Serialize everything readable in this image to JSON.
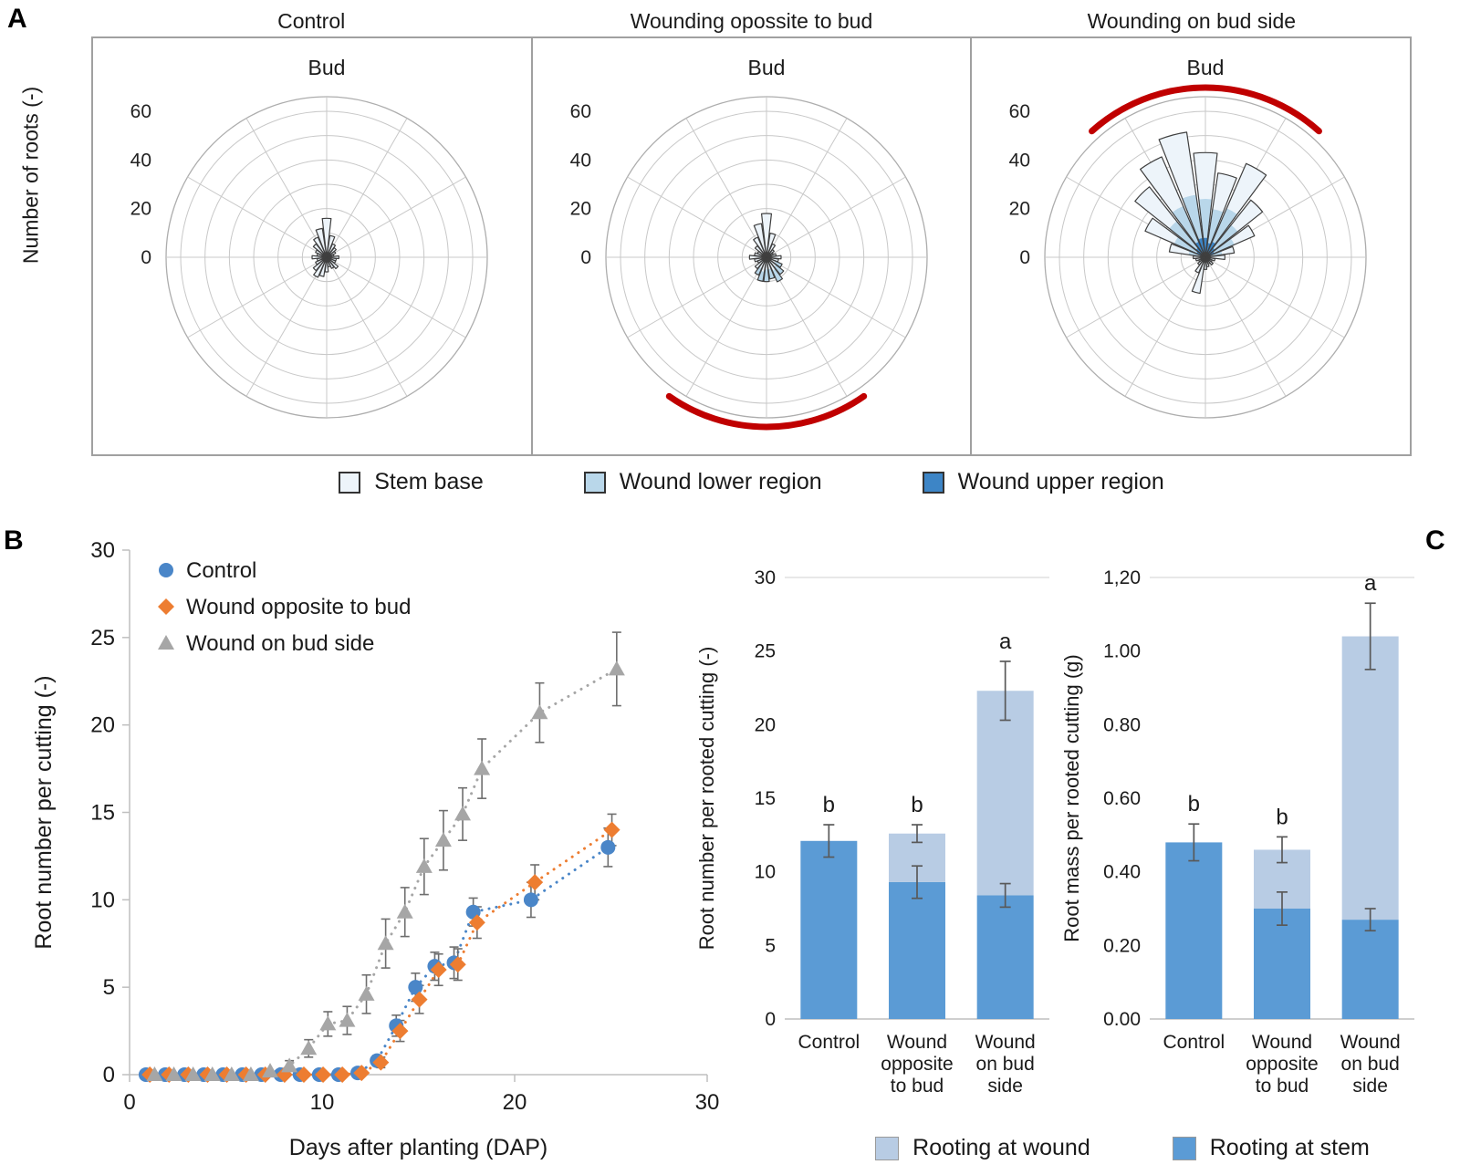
{
  "panels": {
    "a_label": "A",
    "b_label": "B",
    "c_label": "C"
  },
  "colors": {
    "stem_base": "#edf4fa",
    "wound_lower": "#b9d7ea",
    "wound_upper": "#3d85c6",
    "bar_stem": "#5b9bd5",
    "bar_wound": "#b8cce4",
    "series_control": "#4a86c8",
    "series_opposite": "#ed7d31",
    "series_budside": "#a6a6a6",
    "wound_arc": "#c00000",
    "error_bar": "#595959",
    "grid": "#c8c8c8",
    "petal_outline": "#3f3f3f"
  },
  "legend_a": {
    "items": [
      {
        "label": "Stem base",
        "color_key": "stem_base"
      },
      {
        "label": "Wound lower region",
        "color_key": "wound_lower"
      },
      {
        "label": "Wound upper region",
        "color_key": "wound_upper"
      }
    ]
  },
  "legend_c": {
    "items": [
      {
        "label": "Rooting at wound",
        "color_key": "bar_wound"
      },
      {
        "label": "Rooting at stem",
        "color_key": "bar_stem"
      }
    ]
  },
  "chart_data": [
    {
      "type": "rose",
      "title": "Control",
      "center_label": "Bud",
      "ylabel": "Number of roots (-)",
      "r_ticks": [
        60,
        40,
        20,
        0
      ],
      "r_rings": [
        10,
        20,
        30,
        40,
        50,
        60
      ],
      "r_max": 66,
      "sector_half_width_deg": 6.5,
      "wound_arc": null,
      "sectors": [
        [
          0,
          [
            [
              "stem_base",
              16
            ]
          ]
        ],
        [
          15,
          [
            [
              "stem_base",
              9
            ]
          ]
        ],
        [
          30,
          [
            [
              "stem_base",
              6
            ]
          ]
        ],
        [
          45,
          [
            [
              "stem_base",
              5
            ]
          ]
        ],
        [
          60,
          [
            [
              "stem_base",
              4
            ]
          ]
        ],
        [
          75,
          [
            [
              "stem_base",
              3
            ]
          ]
        ],
        [
          90,
          [
            [
              "stem_base",
              5
            ]
          ]
        ],
        [
          105,
          [
            [
              "stem_base",
              4
            ]
          ]
        ],
        [
          120,
          [
            [
              "stem_base",
              4
            ]
          ]
        ],
        [
          135,
          [
            [
              "stem_base",
              6
            ]
          ]
        ],
        [
          150,
          [
            [
              "stem_base",
              5
            ]
          ]
        ],
        [
          165,
          [
            [
              "stem_base",
              4
            ]
          ]
        ],
        [
          180,
          [
            [
              "stem_base",
              6
            ]
          ]
        ],
        [
          195,
          [
            [
              "stem_base",
              8
            ]
          ]
        ],
        [
          210,
          [
            [
              "stem_base",
              9
            ]
          ]
        ],
        [
          225,
          [
            [
              "stem_base",
              7
            ]
          ]
        ],
        [
          240,
          [
            [
              "stem_base",
              5
            ]
          ]
        ],
        [
          255,
          [
            [
              "stem_base",
              4
            ]
          ]
        ],
        [
          270,
          [
            [
              "stem_base",
              6
            ]
          ]
        ],
        [
          285,
          [
            [
              "stem_base",
              4
            ]
          ]
        ],
        [
          300,
          [
            [
              "stem_base",
              5
            ]
          ]
        ],
        [
          315,
          [
            [
              "stem_base",
              7
            ]
          ]
        ],
        [
          330,
          [
            [
              "stem_base",
              9
            ]
          ]
        ],
        [
          345,
          [
            [
              "stem_base",
              12
            ]
          ]
        ]
      ]
    },
    {
      "type": "rose",
      "title": "Wounding opossite to bud",
      "center_label": "Bud",
      "ylabel": "Number of roots (-)",
      "r_ticks": [
        60,
        40,
        20,
        0
      ],
      "r_rings": [
        10,
        20,
        30,
        40,
        50,
        60
      ],
      "r_max": 66,
      "sector_half_width_deg": 6.5,
      "wound_arc": {
        "start": 145,
        "end": 215
      },
      "sectors": [
        [
          0,
          [
            [
              "stem_base",
              18
            ]
          ]
        ],
        [
          15,
          [
            [
              "stem_base",
              10
            ]
          ]
        ],
        [
          30,
          [
            [
              "stem_base",
              6
            ]
          ]
        ],
        [
          45,
          [
            [
              "stem_base",
              4
            ]
          ]
        ],
        [
          60,
          [
            [
              "stem_base",
              3
            ]
          ]
        ],
        [
          75,
          [
            [
              "stem_base",
              4
            ]
          ]
        ],
        [
          90,
          [
            [
              "stem_base",
              6
            ]
          ]
        ],
        [
          105,
          [
            [
              "stem_base",
              5
            ]
          ]
        ],
        [
          120,
          [
            [
              "stem_base",
              4
            ],
            [
              "wound_lower",
              3
            ]
          ]
        ],
        [
          135,
          [
            [
              "stem_base",
              5
            ],
            [
              "wound_lower",
              4
            ]
          ]
        ],
        [
          150,
          [
            [
              "stem_base",
              6
            ],
            [
              "wound_lower",
              5
            ]
          ]
        ],
        [
          165,
          [
            [
              "stem_base",
              5
            ],
            [
              "wound_lower",
              4
            ]
          ]
        ],
        [
          180,
          [
            [
              "stem_base",
              5
            ],
            [
              "wound_lower",
              5
            ]
          ]
        ],
        [
          195,
          [
            [
              "stem_base",
              6
            ],
            [
              "wound_lower",
              4
            ]
          ]
        ],
        [
          210,
          [
            [
              "stem_base",
              5
            ],
            [
              "wound_lower",
              3
            ]
          ]
        ],
        [
          225,
          [
            [
              "stem_base",
              6
            ]
          ]
        ],
        [
          240,
          [
            [
              "stem_base",
              4
            ]
          ]
        ],
        [
          255,
          [
            [
              "stem_base",
              5
            ]
          ]
        ],
        [
          270,
          [
            [
              "stem_base",
              7
            ]
          ]
        ],
        [
          285,
          [
            [
              "stem_base",
              5
            ]
          ]
        ],
        [
          300,
          [
            [
              "stem_base",
              4
            ]
          ]
        ],
        [
          315,
          [
            [
              "stem_base",
              6
            ]
          ]
        ],
        [
          330,
          [
            [
              "stem_base",
              9
            ]
          ]
        ],
        [
          345,
          [
            [
              "stem_base",
              14
            ]
          ]
        ]
      ]
    },
    {
      "type": "rose",
      "title": "Wounding on bud side",
      "center_label": "Bud",
      "ylabel": "Number of roots (-)",
      "r_ticks": [
        60,
        40,
        20,
        0
      ],
      "r_rings": [
        10,
        20,
        30,
        40,
        50,
        60
      ],
      "r_max": 66,
      "sector_half_width_deg": 6.5,
      "wound_arc": {
        "start": -42,
        "end": 42
      },
      "sectors": [
        [
          270,
          [
            [
              "stem_base",
              5
            ]
          ]
        ],
        [
          285,
          [
            [
              "wound_upper",
              2
            ],
            [
              "wound_lower",
              5
            ],
            [
              "stem_base",
              8
            ]
          ]
        ],
        [
          300,
          [
            [
              "wound_upper",
              4
            ],
            [
              "wound_lower",
              10
            ],
            [
              "stem_base",
              13
            ]
          ]
        ],
        [
          315,
          [
            [
              "wound_upper",
              5
            ],
            [
              "wound_lower",
              14
            ],
            [
              "stem_base",
              18
            ]
          ]
        ],
        [
          330,
          [
            [
              "wound_upper",
              7
            ],
            [
              "wound_lower",
              16
            ],
            [
              "stem_base",
              22
            ]
          ]
        ],
        [
          345,
          [
            [
              "wound_upper",
              8
            ],
            [
              "wound_lower",
              18
            ],
            [
              "stem_base",
              26
            ]
          ]
        ],
        [
          0,
          [
            [
              "wound_upper",
              8
            ],
            [
              "wound_lower",
              16
            ],
            [
              "stem_base",
              19
            ]
          ]
        ],
        [
          15,
          [
            [
              "wound_upper",
              6
            ],
            [
              "wound_lower",
              14
            ],
            [
              "stem_base",
              15
            ]
          ]
        ],
        [
          30,
          [
            [
              "wound_upper",
              7
            ],
            [
              "wound_lower",
              15
            ],
            [
              "stem_base",
              20
            ]
          ]
        ],
        [
          45,
          [
            [
              "wound_upper",
              5
            ],
            [
              "wound_lower",
              12
            ],
            [
              "stem_base",
              13
            ]
          ]
        ],
        [
          60,
          [
            [
              "wound_upper",
              4
            ],
            [
              "wound_lower",
              9
            ],
            [
              "stem_base",
              9
            ]
          ]
        ],
        [
          75,
          [
            [
              "wound_upper",
              2
            ],
            [
              "wound_lower",
              5
            ],
            [
              "stem_base",
              5
            ]
          ]
        ],
        [
          90,
          [
            [
              "stem_base",
              8
            ]
          ]
        ],
        [
          105,
          [
            [
              "stem_base",
              4
            ]
          ]
        ],
        [
          120,
          [
            [
              "stem_base",
              3
            ]
          ]
        ],
        [
          135,
          [
            [
              "stem_base",
              4
            ]
          ]
        ],
        [
          150,
          [
            [
              "stem_base",
              3
            ]
          ]
        ],
        [
          165,
          [
            [
              "stem_base",
              4
            ]
          ]
        ],
        [
          180,
          [
            [
              "stem_base",
              5
            ]
          ]
        ],
        [
          195,
          [
            [
              "stem_base",
              15
            ]
          ]
        ],
        [
          210,
          [
            [
              "stem_base",
              7
            ]
          ]
        ],
        [
          225,
          [
            [
              "stem_base",
              4
            ]
          ]
        ],
        [
          240,
          [
            [
              "stem_base",
              3
            ]
          ]
        ],
        [
          255,
          [
            [
              "stem_base",
              4
            ]
          ]
        ]
      ]
    },
    {
      "type": "scatter",
      "xlabel": "Days after planting (DAP)",
      "ylabel": "Root number per cutting (-)",
      "xlim": [
        0,
        30
      ],
      "ylim": [
        0,
        30
      ],
      "xticks": [
        0,
        10,
        20,
        30
      ],
      "yticks": [
        0,
        5,
        10,
        15,
        20,
        25,
        30
      ],
      "x": [
        1,
        2,
        3,
        4,
        5,
        6,
        7,
        8,
        9,
        10,
        11,
        12,
        13,
        14,
        15,
        16,
        17,
        18,
        21,
        25
      ],
      "series": [
        {
          "name": "Control",
          "marker": "circle",
          "color_key": "series_control",
          "x_offset": -0.15,
          "y": [
            0,
            0,
            0,
            0,
            0,
            0,
            0,
            0,
            0,
            0,
            0,
            0.1,
            0.8,
            2.8,
            5.0,
            6.2,
            6.4,
            9.3,
            10.0,
            13.0
          ],
          "err": [
            0,
            0,
            0,
            0,
            0,
            0,
            0,
            0,
            0,
            0,
            0,
            0,
            0.3,
            0.6,
            0.8,
            0.8,
            0.9,
            0.8,
            1.0,
            1.1
          ]
        },
        {
          "name": "Wound opposite to bud",
          "marker": "diamond",
          "color_key": "series_opposite",
          "x_offset": 0.05,
          "y": [
            0,
            0,
            0,
            0,
            0,
            0,
            0,
            0,
            0,
            0,
            0,
            0.1,
            0.7,
            2.5,
            4.3,
            6.0,
            6.3,
            8.7,
            11.0,
            14.0
          ],
          "err": [
            0,
            0,
            0,
            0,
            0,
            0,
            0,
            0,
            0,
            0,
            0,
            0,
            0.3,
            0.6,
            0.8,
            0.9,
            0.9,
            0.9,
            1.0,
            0.9
          ]
        },
        {
          "name": "Wound on bud side",
          "marker": "triangle",
          "color_key": "series_budside",
          "x_offset": 0.3,
          "y": [
            0,
            0,
            0,
            0,
            0,
            0,
            0.2,
            0.5,
            1.5,
            2.9,
            3.1,
            4.6,
            7.5,
            9.3,
            11.9,
            13.4,
            14.9,
            17.5,
            20.7,
            23.2
          ],
          "err": [
            0,
            0,
            0,
            0,
            0,
            0,
            0,
            0.3,
            0.5,
            0.7,
            0.8,
            1.1,
            1.4,
            1.4,
            1.6,
            1.7,
            1.5,
            1.7,
            1.7,
            2.1
          ]
        }
      ]
    },
    {
      "type": "stacked_bar",
      "ylabel": "Root number per rooted cutting (-)",
      "ylim": [
        0,
        30
      ],
      "yticks": [
        [
          "0",
          0
        ],
        [
          "5",
          5
        ],
        [
          "10",
          10
        ],
        [
          "15",
          15
        ],
        [
          "20",
          20
        ],
        [
          "25",
          25
        ],
        [
          "30",
          30
        ]
      ],
      "categories": [
        [
          "Control"
        ],
        [
          "Wound",
          "opposite",
          "to bud"
        ],
        [
          "Wound",
          "on bud",
          "side"
        ]
      ],
      "letters": [
        "b",
        "b",
        "a"
      ],
      "bars": [
        {
          "stem": 12.1,
          "wound": 0,
          "err_total": 1.1,
          "err_stem": null
        },
        {
          "stem": 9.3,
          "wound": 3.3,
          "err_total": 0.6,
          "err_stem": 1.1
        },
        {
          "stem": 8.4,
          "wound": 13.9,
          "err_total": 2.0,
          "err_stem": 0.8
        }
      ]
    },
    {
      "type": "stacked_bar",
      "ylabel": "Root mass per rooted cutting (g)",
      "ylim": [
        0,
        1.2
      ],
      "yticks": [
        [
          "0.00",
          0
        ],
        [
          "0.20",
          0.2
        ],
        [
          "0.40",
          0.4
        ],
        [
          "0.60",
          0.6
        ],
        [
          "0.80",
          0.8
        ],
        [
          "1.00",
          1.0
        ],
        [
          "1,20",
          1.2
        ]
      ],
      "categories": [
        [
          "Control"
        ],
        [
          "Wound",
          "opposite",
          "to bud"
        ],
        [
          "Wound",
          "on bud",
          "side"
        ]
      ],
      "letters": [
        "b",
        "b",
        "a"
      ],
      "bars": [
        {
          "stem": 0.48,
          "wound": 0,
          "err_total": 0.05,
          "err_stem": null
        },
        {
          "stem": 0.3,
          "wound": 0.16,
          "err_total": 0.035,
          "err_stem": 0.045
        },
        {
          "stem": 0.27,
          "wound": 0.77,
          "err_total": 0.09,
          "err_stem": 0.03
        }
      ]
    }
  ]
}
